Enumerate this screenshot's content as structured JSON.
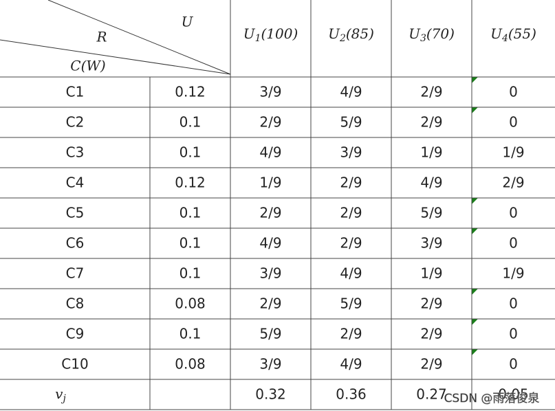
{
  "header": {
    "corner": {
      "top": "U",
      "middle": "R",
      "bottom": "C(W)"
    },
    "columns": [
      {
        "base": "U",
        "sub": "1",
        "rest": "(100)"
      },
      {
        "base": "U",
        "sub": "2",
        "rest": "(85)"
      },
      {
        "base": "U",
        "sub": "3",
        "rest": "(70)"
      },
      {
        "base": "U",
        "sub": "4",
        "rest": "(55)"
      }
    ]
  },
  "table": {
    "rows": [
      [
        "C1",
        "0.12",
        "3/9",
        "4/9",
        "2/9",
        "0"
      ],
      [
        "C2",
        "0.1",
        "2/9",
        "5/9",
        "2/9",
        "0"
      ],
      [
        "C3",
        "0.1",
        "4/9",
        "3/9",
        "1/9",
        "1/9"
      ],
      [
        "C4",
        "0.12",
        "1/9",
        "2/9",
        "4/9",
        "2/9"
      ],
      [
        "C5",
        "0.1",
        "2/9",
        "2/9",
        "5/9",
        "0"
      ],
      [
        "C6",
        "0.1",
        "4/9",
        "2/9",
        "3/9",
        "0"
      ],
      [
        "C7",
        "0.1",
        "3/9",
        "4/9",
        "1/9",
        "1/9"
      ],
      [
        "C8",
        "0.08",
        "2/9",
        "5/9",
        "2/9",
        "0"
      ],
      [
        "C9",
        "0.1",
        "5/9",
        "2/9",
        "2/9",
        "0"
      ],
      [
        "C10",
        "0.08",
        "3/9",
        "4/9",
        "2/9",
        "0"
      ]
    ],
    "footer": {
      "label": {
        "base": "v",
        "sub": "j"
      },
      "values": [
        "0.32",
        "0.36",
        "0.27",
        "0.05"
      ]
    }
  },
  "watermark": "CSDN @雨落俊泉"
}
